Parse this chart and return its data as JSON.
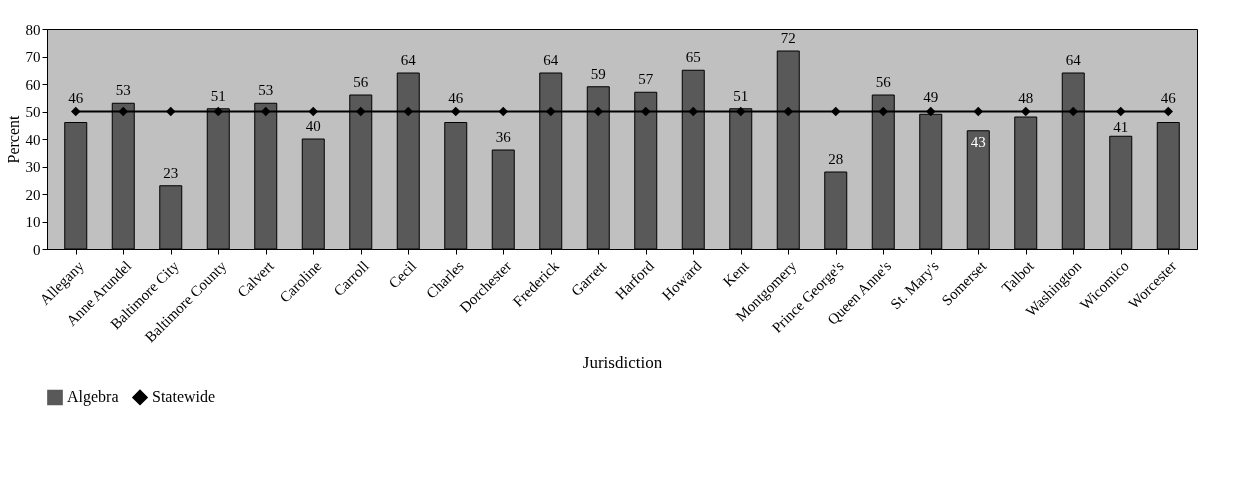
{
  "chart_data": {
    "type": "bar",
    "xlabel": "Jurisdiction",
    "ylabel": "Percent",
    "categories": [
      "Allegany",
      "Anne Arundel",
      "Baltimore City",
      "Baltimore County",
      "Calvert",
      "Caroline",
      "Carroll",
      "Cecil",
      "Charles",
      "Dorchester",
      "Frederick",
      "Garrett",
      "Harford",
      "Howard",
      "Kent",
      "Montgomery",
      "Prince George's",
      "Queen Anne's",
      "St. Mary's",
      "Somerset",
      "Talbot",
      "Washington",
      "Wicomico",
      "Worcester"
    ],
    "series": [
      {
        "name": "Algebra",
        "color": "#595959",
        "values": [
          46,
          53,
          23,
          51,
          53,
          40,
          56,
          64,
          46,
          36,
          64,
          59,
          57,
          65,
          51,
          72,
          28,
          56,
          49,
          43,
          48,
          64,
          41,
          46
        ],
        "value_labels": [
          "46",
          "53",
          "23",
          "51",
          "53",
          "40",
          "56",
          "64",
          "46",
          "36",
          "64",
          "59",
          "57",
          "65",
          "51",
          "72",
          "28",
          "56",
          "49",
          "43",
          "48",
          "64",
          "41",
          "46"
        ]
      },
      {
        "name": "Statewide",
        "type": "line",
        "color": "#000000",
        "marker": "diamond",
        "values": [
          50,
          50,
          50,
          50,
          50,
          50,
          50,
          50,
          50,
          50,
          50,
          50,
          50,
          50,
          50,
          50,
          50,
          50,
          50,
          50,
          50,
          50,
          50,
          50
        ]
      }
    ],
    "ylim": [
      0,
      80
    ],
    "yticks": [
      0,
      10,
      20,
      30,
      40,
      50,
      60,
      70,
      80
    ],
    "grid": false,
    "legend": "bottom"
  }
}
